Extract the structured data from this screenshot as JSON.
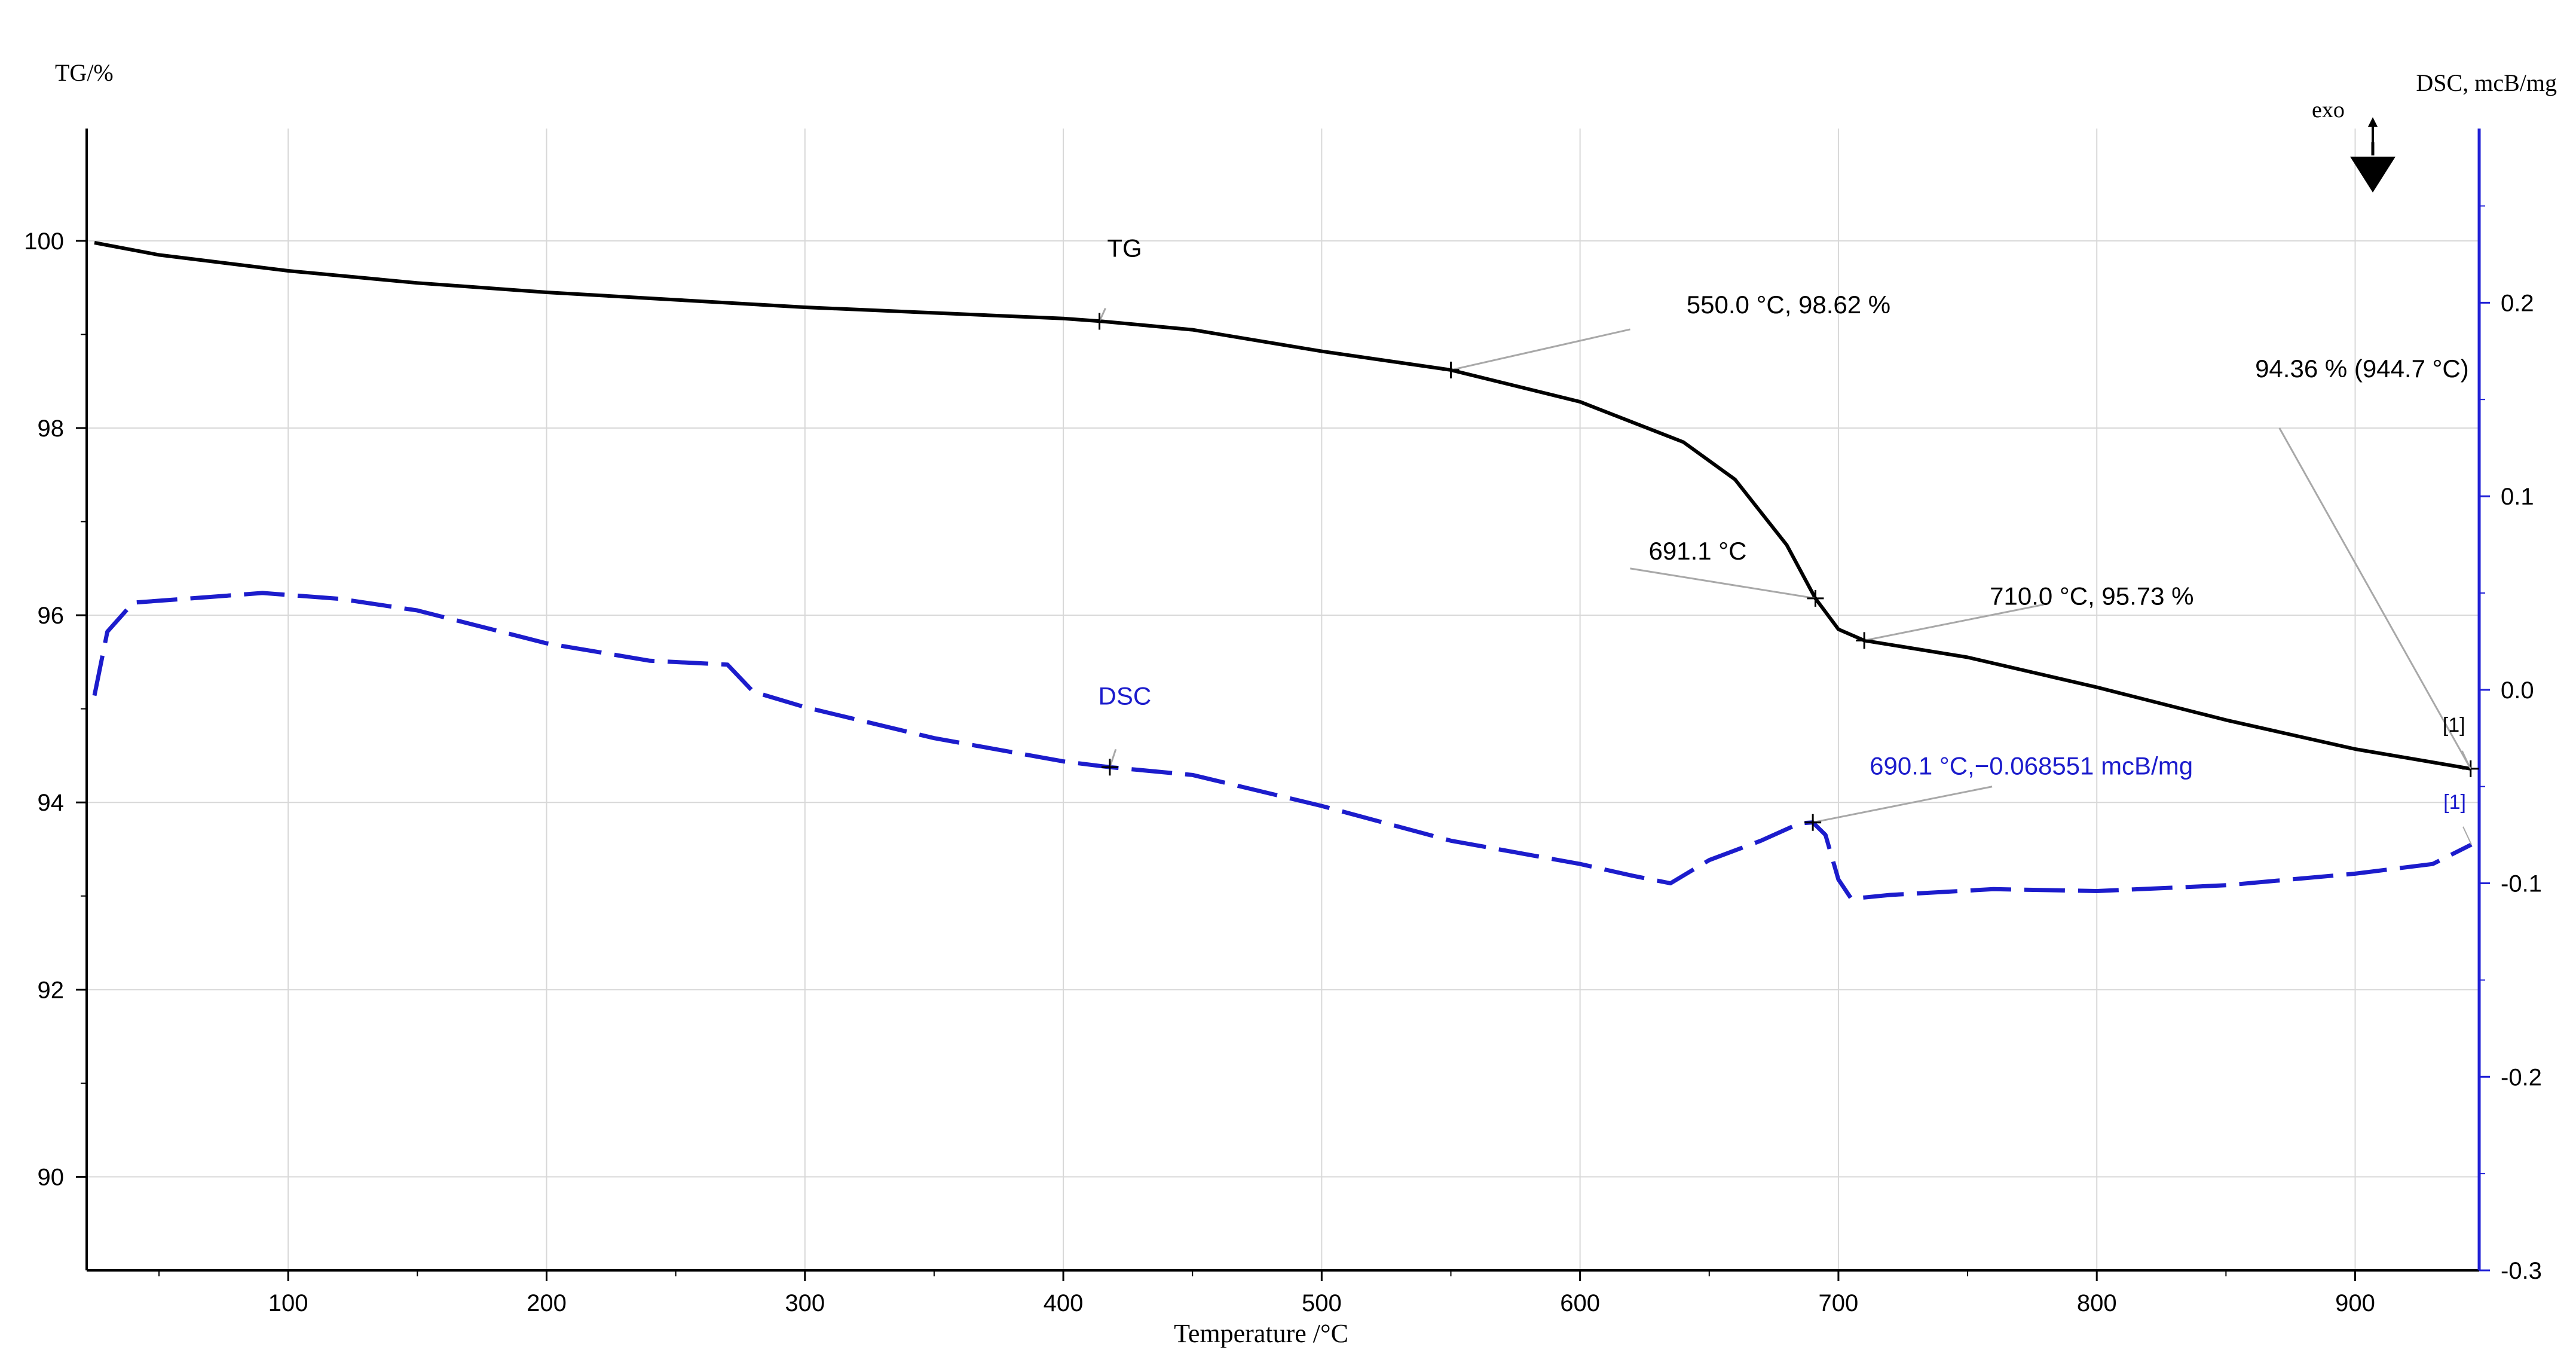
{
  "chart_data": {
    "type": "line",
    "title": "",
    "xlabel": "Temperature  /°C",
    "ylabel_left": "TG/%",
    "ylabel_right": "DSC, mcB/mg",
    "exo_label": "exo",
    "xlim": [
      22,
      948
    ],
    "ylim_left": [
      89.0,
      101.2
    ],
    "ylim_right": [
      -0.3,
      0.29
    ],
    "x_ticks": [
      100,
      200,
      300,
      400,
      500,
      600,
      700,
      800,
      900
    ],
    "y_left_ticks": [
      90,
      92,
      94,
      96,
      98,
      100
    ],
    "y_right_ticks": [
      "-0.3",
      "-0.2",
      "-0.1",
      "0.0",
      "0.1",
      "0.2"
    ],
    "grid": true,
    "colors": {
      "tg": "#000000",
      "dsc": "#1c1ccc",
      "grid": "#d8d8d8",
      "right_axis": "#1f1fd6",
      "leader": "#a8a8a8"
    },
    "series": [
      {
        "name": "TG",
        "axis": "left",
        "style": "solid",
        "x": [
          25,
          50,
          100,
          150,
          200,
          250,
          300,
          350,
          400,
          415,
          450,
          500,
          550,
          600,
          640,
          660,
          680,
          691.1,
          700,
          710,
          750,
          800,
          850,
          900,
          944.7
        ],
        "y": [
          99.98,
          99.85,
          99.68,
          99.55,
          99.45,
          99.37,
          99.29,
          99.23,
          99.17,
          99.14,
          99.05,
          98.82,
          98.62,
          98.28,
          97.85,
          97.45,
          96.75,
          96.18,
          95.85,
          95.73,
          95.55,
          95.23,
          94.88,
          94.57,
          94.36
        ]
      },
      {
        "name": "DSC",
        "axis": "right",
        "style": "dashed",
        "x": [
          25,
          30,
          40,
          60,
          90,
          120,
          150,
          200,
          240,
          270,
          280,
          300,
          350,
          400,
          418,
          450,
          500,
          550,
          600,
          620,
          635,
          650,
          670,
          685,
          690.1,
          695,
          700,
          705,
          720,
          760,
          800,
          850,
          900,
          930,
          945
        ],
        "y": [
          -0.003,
          0.03,
          0.045,
          0.047,
          0.05,
          0.047,
          0.041,
          0.024,
          0.015,
          0.013,
          -0.001,
          -0.009,
          -0.025,
          -0.037,
          -0.04,
          -0.044,
          -0.06,
          -0.078,
          -0.09,
          -0.096,
          -0.1,
          -0.088,
          -0.078,
          -0.069,
          -0.068551,
          -0.075,
          -0.098,
          -0.108,
          -0.106,
          -0.103,
          -0.104,
          -0.101,
          -0.095,
          -0.09,
          -0.08
        ]
      }
    ],
    "annotations": [
      {
        "label": "TG",
        "series": "TG",
        "x": 414,
        "y": 99.14
      },
      {
        "label": "550.0 °C, 98.62 %",
        "series": "TG",
        "x": 550.0,
        "y": 98.62
      },
      {
        "label": "691.1 °C",
        "series": "TG",
        "x": 691.1,
        "y": 96.18
      },
      {
        "label": "710.0 °C, 95.73 %",
        "series": "TG",
        "x": 710.0,
        "y": 95.73
      },
      {
        "label": "94.36 % (944.7 °C)",
        "series": "TG",
        "x": 944.7,
        "y": 94.36
      },
      {
        "label": "[1]",
        "series": "TG",
        "x": 944.7,
        "y": 94.36
      },
      {
        "label": "DSC",
        "series": "DSC",
        "x": 418,
        "y": -0.04
      },
      {
        "label": "690.1 °C,−0.068551 mcB/mg",
        "series": "DSC",
        "x": 690.1,
        "y": -0.068551
      },
      {
        "label": "[1]",
        "series": "DSC",
        "x": 945,
        "y": -0.08
      }
    ]
  }
}
